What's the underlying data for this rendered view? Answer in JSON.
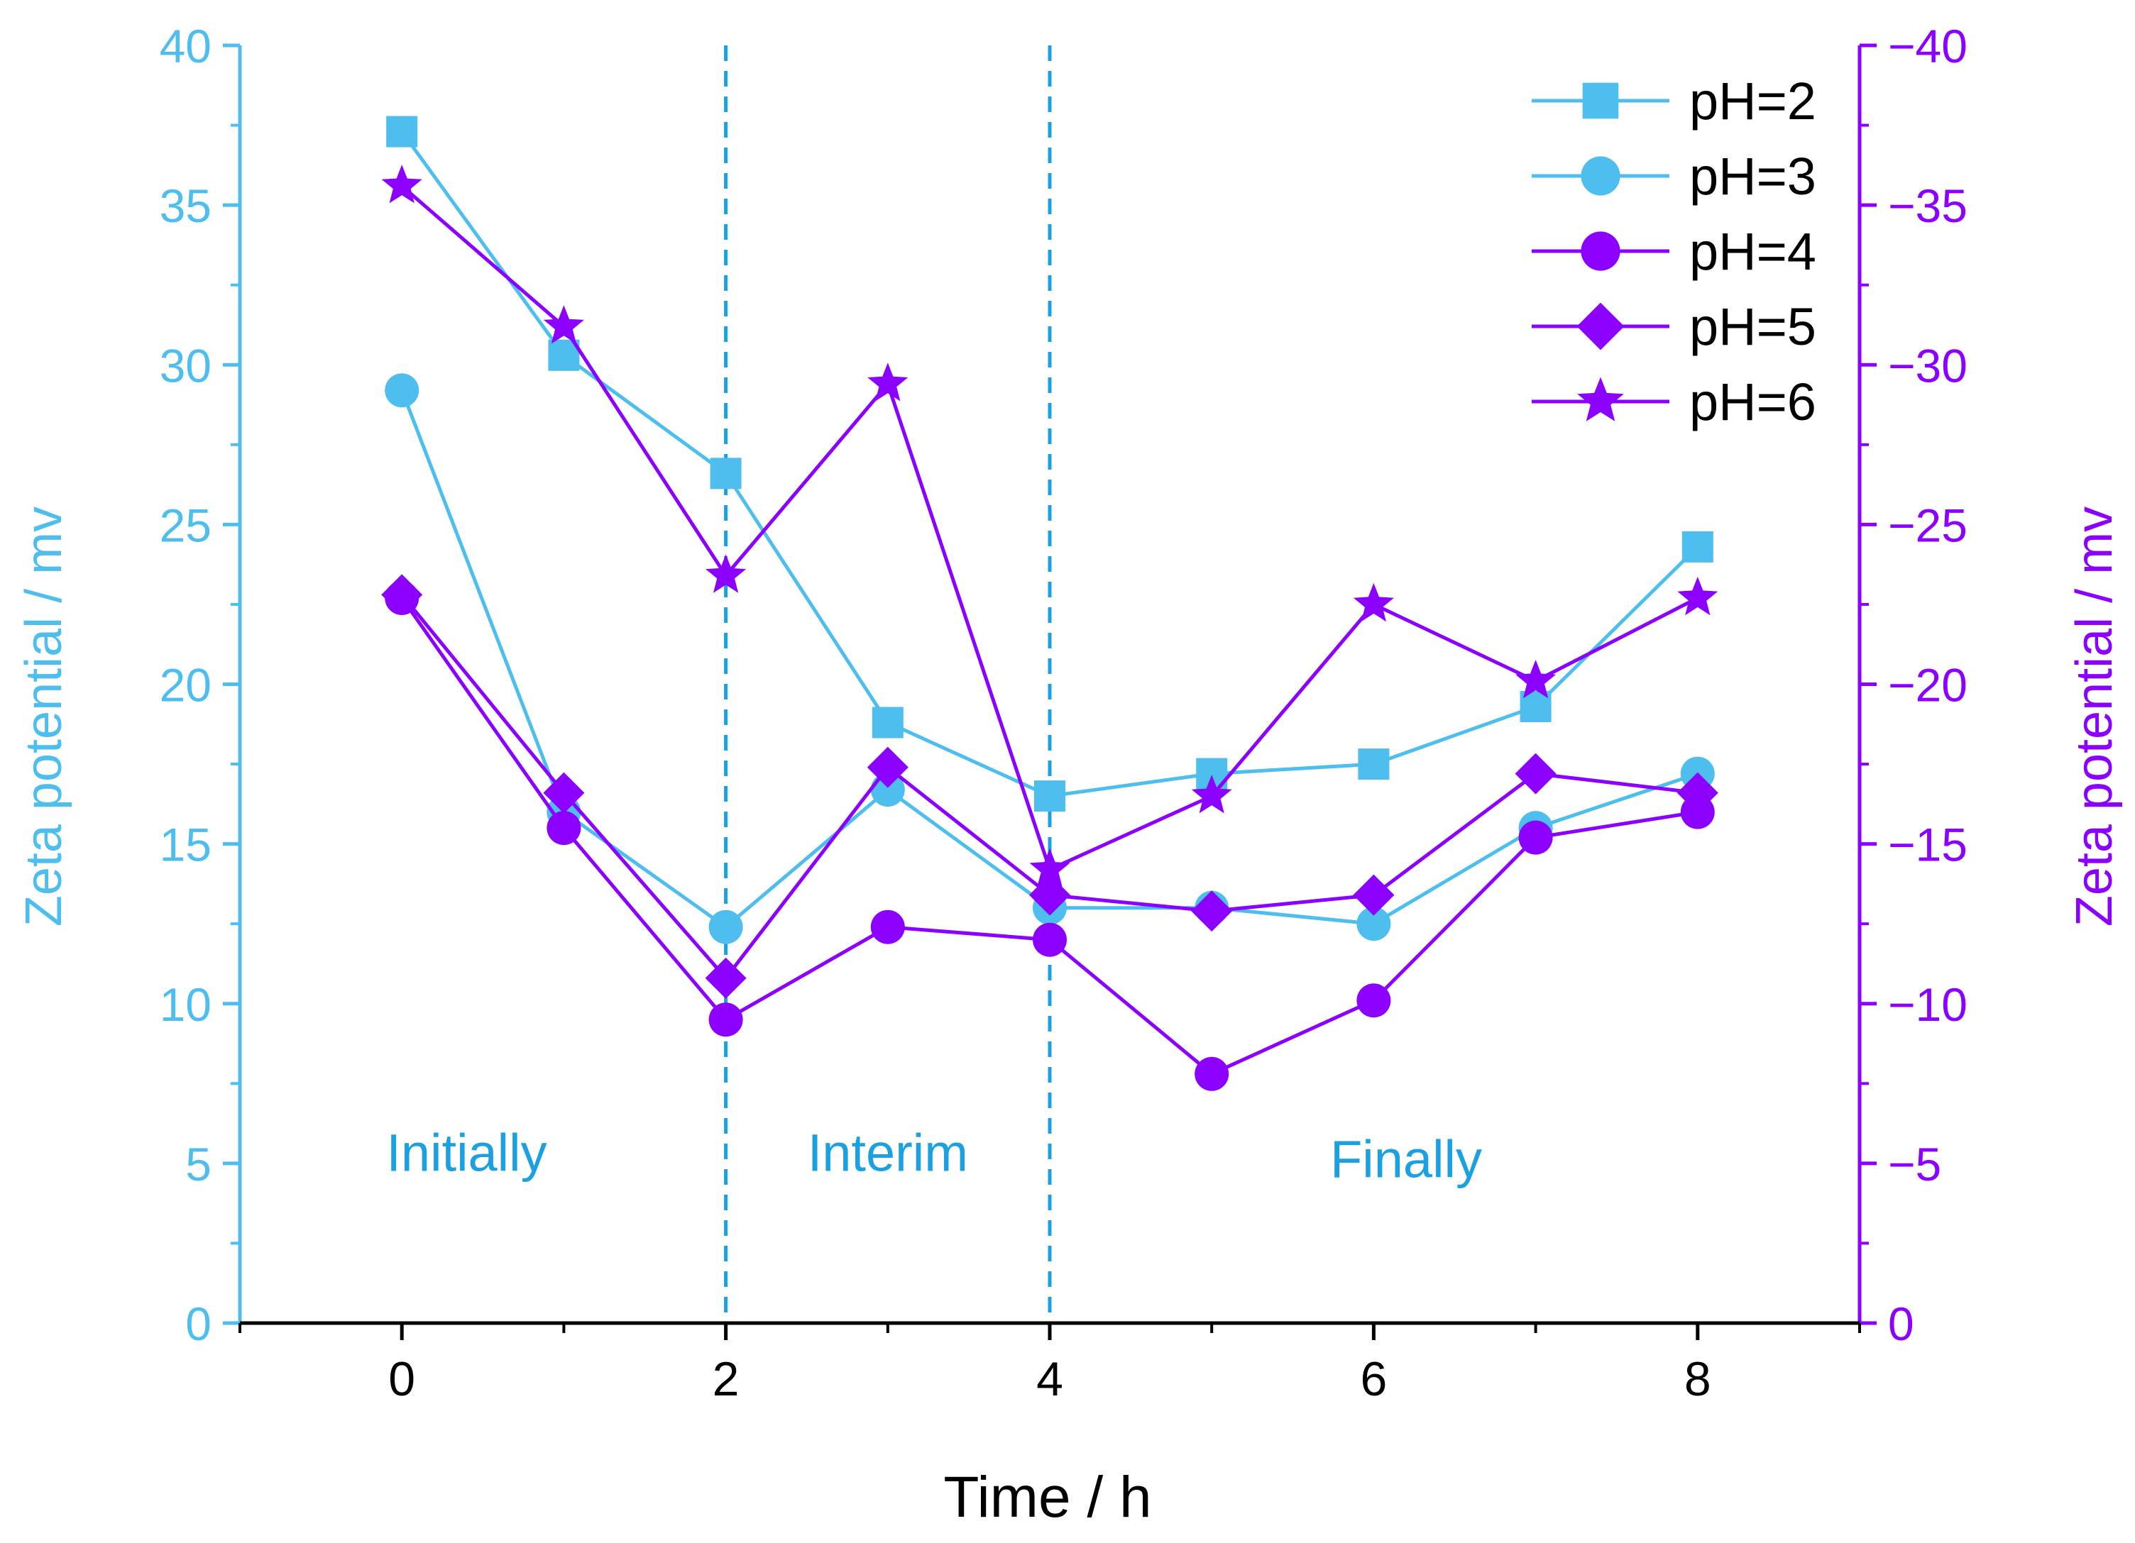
{
  "chart_data": {
    "type": "line",
    "title": "",
    "xlabel": "Time / h",
    "ylabel_left": "Zeta potential / mv",
    "ylabel_right": "Zeta potential / mv",
    "xlim": [
      -1,
      9
    ],
    "ylim_left": [
      0,
      40
    ],
    "ylim_right": [
      0,
      -40
    ],
    "x_ticks": [
      0,
      2,
      4,
      6,
      8
    ],
    "x_tick_labels": [
      "0",
      "2",
      "4",
      "6",
      "8"
    ],
    "left_ticks": [
      0,
      5,
      10,
      15,
      20,
      25,
      30,
      35,
      40
    ],
    "left_tick_labels": [
      "0",
      "5",
      "10",
      "15",
      "20",
      "25",
      "30",
      "35",
      "40"
    ],
    "right_ticks": [
      0,
      -5,
      -10,
      -15,
      -20,
      -25,
      -30,
      -35,
      -40
    ],
    "right_tick_labels": [
      "0",
      "−5",
      "−10",
      "−15",
      "−20",
      "−25",
      "−30",
      "−35",
      "−40"
    ],
    "vlines": [
      2,
      4
    ],
    "regions": [
      {
        "label": "Initially",
        "x": 0.4,
        "y": 5.3
      },
      {
        "label": "Interim",
        "x": 3.0,
        "y": 5.3
      },
      {
        "label": "Finally",
        "x": 6.2,
        "y": 5.1
      }
    ],
    "legend_position": "top-right",
    "series": [
      {
        "name": "pH=2",
        "axis": "left",
        "marker": "square",
        "color": "#4DBEEE",
        "x": [
          0,
          1,
          2,
          3,
          4,
          5,
          6,
          7,
          8
        ],
        "values": [
          37.3,
          30.3,
          26.6,
          18.8,
          16.5,
          17.2,
          17.5,
          19.3,
          24.3
        ]
      },
      {
        "name": "pH=3",
        "axis": "left",
        "marker": "circle",
        "color": "#4DBEEE",
        "x": [
          0,
          1,
          2,
          3,
          4,
          5,
          6,
          7,
          8
        ],
        "values": [
          29.2,
          16.0,
          12.4,
          16.7,
          13.0,
          13.0,
          12.5,
          15.5,
          17.2
        ]
      },
      {
        "name": "pH=4",
        "axis": "right",
        "marker": "circle",
        "color": "#8B00FF",
        "x": [
          0,
          1,
          2,
          3,
          4,
          5,
          6,
          7,
          8
        ],
        "values": [
          -22.7,
          -15.5,
          -9.5,
          -12.4,
          -12.0,
          -7.8,
          -10.1,
          -15.2,
          -16.0
        ]
      },
      {
        "name": "pH=5",
        "axis": "right",
        "marker": "diamond",
        "color": "#8B00FF",
        "x": [
          0,
          1,
          2,
          3,
          4,
          5,
          6,
          7,
          8
        ],
        "values": [
          -22.8,
          -16.6,
          -10.8,
          -17.4,
          -13.4,
          -12.9,
          -13.4,
          -17.2,
          -16.6
        ]
      },
      {
        "name": "pH=6",
        "axis": "right",
        "marker": "star",
        "color": "#8B00FF",
        "x": [
          0,
          1,
          2,
          3,
          4,
          5,
          6,
          7,
          8
        ],
        "values": [
          -35.6,
          -31.2,
          -23.4,
          -29.4,
          -14.2,
          -16.5,
          -22.5,
          -20.1,
          -22.7
        ]
      }
    ],
    "colors": {
      "left_axis": "#4DBEEE",
      "right_axis": "#8B00FF",
      "vline": "#1BA1E2",
      "region_text": "#1BA1E2",
      "text": "#000000"
    }
  }
}
